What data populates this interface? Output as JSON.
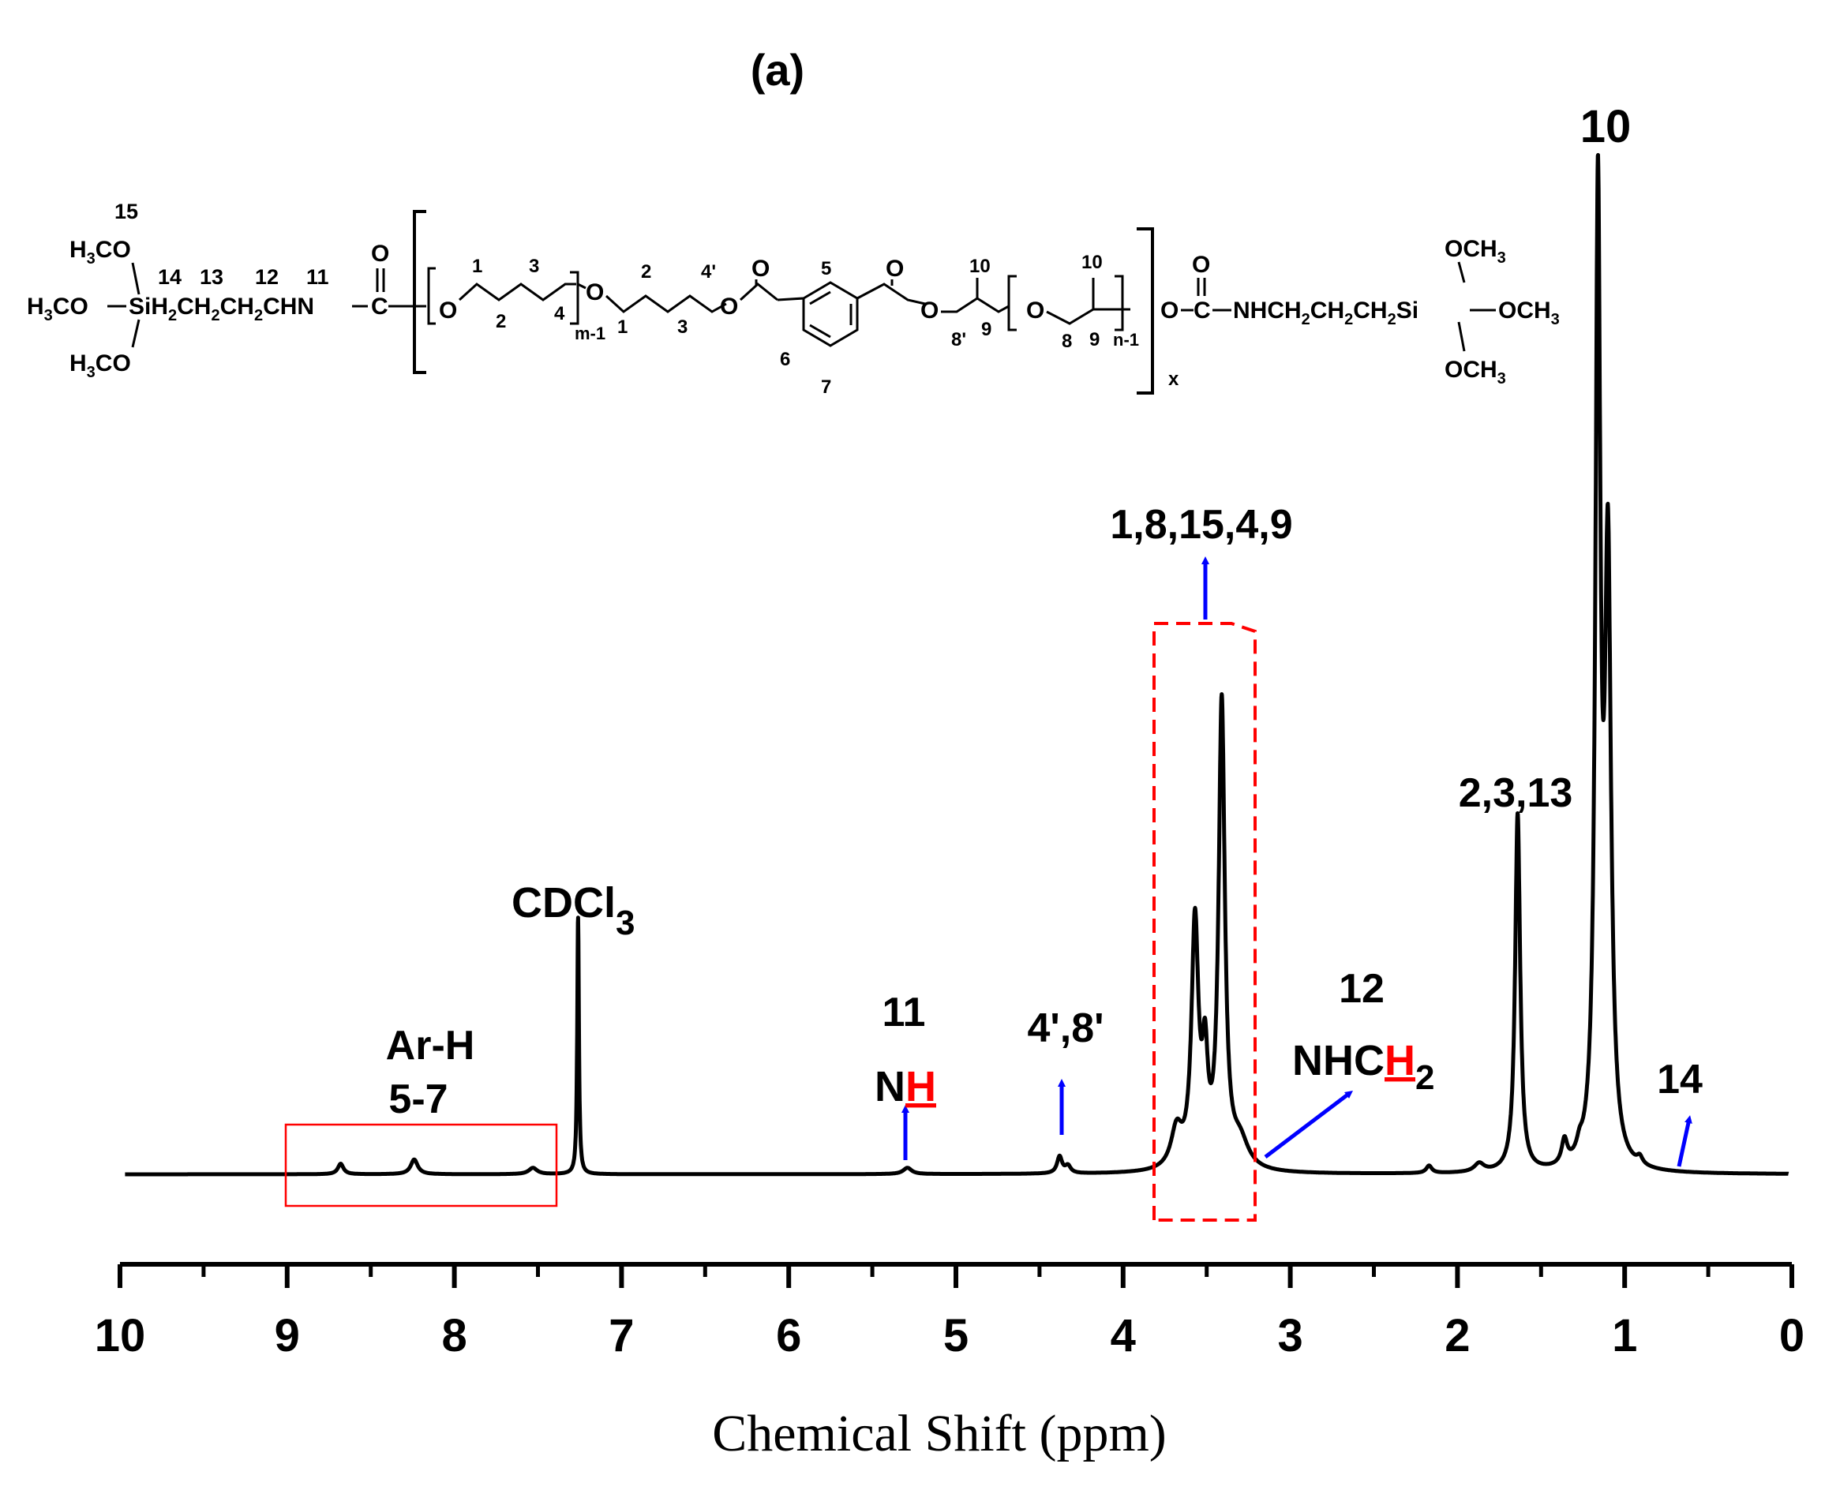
{
  "chart_data": {
    "type": "line",
    "panel_label": "(a)",
    "xlabel": "Chemical Shift (ppm)",
    "xlim": [
      10,
      0
    ],
    "x_reversed": true,
    "ylim": [
      0,
      100
    ],
    "grid": false,
    "x_ticks": [
      "10",
      "9",
      "8",
      "7",
      "6",
      "5",
      "4",
      "3",
      "2",
      "1",
      "0"
    ],
    "baseline": 0,
    "peaks": [
      {
        "ppm": 8.68,
        "height": 1.0,
        "width": 0.02
      },
      {
        "ppm": 8.24,
        "height": 1.4,
        "width": 0.025
      },
      {
        "ppm": 7.53,
        "height": 0.6,
        "width": 0.03
      },
      {
        "ppm": 7.26,
        "height": 24.5,
        "width": 0.006
      },
      {
        "ppm": 5.29,
        "height": 0.6,
        "width": 0.03
      },
      {
        "ppm": 4.38,
        "height": 1.6,
        "width": 0.018
      },
      {
        "ppm": 4.33,
        "height": 0.7,
        "width": 0.02
      },
      {
        "ppm": 3.68,
        "height": 3.6,
        "width": 0.04
      },
      {
        "ppm": 3.57,
        "height": 23.0,
        "width": 0.025
      },
      {
        "ppm": 3.51,
        "height": 9.0,
        "width": 0.02
      },
      {
        "ppm": 3.41,
        "height": 44.0,
        "width": 0.022
      },
      {
        "ppm": 3.3,
        "height": 2.5,
        "width": 0.06
      },
      {
        "ppm": 2.17,
        "height": 0.7,
        "width": 0.02
      },
      {
        "ppm": 1.87,
        "height": 0.8,
        "width": 0.035
      },
      {
        "ppm": 1.64,
        "height": 34.0,
        "width": 0.018
      },
      {
        "ppm": 1.36,
        "height": 2.3,
        "width": 0.02
      },
      {
        "ppm": 1.27,
        "height": 1.0,
        "width": 0.02
      },
      {
        "ppm": 1.16,
        "height": 90.0,
        "width": 0.018
      },
      {
        "ppm": 1.1,
        "height": 56.0,
        "width": 0.022
      },
      {
        "ppm": 0.91,
        "height": 0.7,
        "width": 0.02
      }
    ],
    "annotations": [
      {
        "text": "10",
        "ppm": 1.13
      },
      {
        "text": "2,3,13",
        "ppm": 1.63
      },
      {
        "text": "1,8,15,4,9",
        "ppm": 3.52
      },
      {
        "text": "12",
        "ppm": 2.8
      },
      {
        "text": "11",
        "ppm": 5.3
      },
      {
        "text": "4',8'",
        "ppm": 4.38
      },
      {
        "text": "Ar-H",
        "ppm": 8.1
      },
      {
        "text": "5-7",
        "ppm": 8.1
      },
      {
        "text": "14",
        "ppm": 0.7
      }
    ],
    "labels": {
      "cdcl3": "CDCl",
      "cdcl3_sub": "3",
      "nh_n": "N",
      "nh_h": "H",
      "nhch2_prefix": "NHC",
      "nhch2_h": "H",
      "nhch2_sub": "2"
    }
  },
  "structure": {
    "left": {
      "h15": "15",
      "h3co_top": "H",
      "h3co_top_sub": "3",
      "h3co_top_end": "CO",
      "h3co_mid": "H",
      "h3co_mid_sub": "3",
      "h3co_mid_end": "CO",
      "si_chain": "SiH",
      "si_chain_sub1": "2",
      "si_chain_mid1": "CH",
      "si_chain_sub2": "2",
      "si_chain_mid2": "CH",
      "si_chain_sub3": "2",
      "si_chain_end": "CHN",
      "h3co_bot": "H",
      "h3co_bot_sub": "3",
      "h3co_bot_end": "CO",
      "n14": "14",
      "n13": "13",
      "n12": "12",
      "n11": "11",
      "carbonyl_o": "O",
      "carbonyl_c": "C"
    },
    "backbone": {
      "o1": "O",
      "n1": "1",
      "n2": "2",
      "n3": "3",
      "n4": "4",
      "m1": "m-1",
      "o2": "O",
      "n1b": "1",
      "n2b": "2",
      "n3b": "3",
      "n4p": "4'",
      "o3": "O",
      "o_keto1": "O",
      "n5": "5",
      "n6": "6",
      "n7": "7",
      "o_keto2": "O",
      "o4": "O",
      "n8p": "8'",
      "n9": "9",
      "n10": "10",
      "o5": "O",
      "n8": "8",
      "n9b": "9",
      "n10b": "10",
      "nm1": "n-1",
      "x": "x"
    },
    "right": {
      "o_end": "O",
      "c_end": "C",
      "o_carbonyl": "O",
      "chain": "NHCH",
      "chain_sub1": "2",
      "chain_mid": "CH",
      "chain_sub2": "2",
      "chain_mid2": "CH",
      "chain_sub3": "2",
      "chain_end": "Si",
      "och3_top": "OCH",
      "och3_top_sub": "3",
      "och3_mid": "OCH",
      "och3_mid_sub": "3",
      "och3_bot": "OCH",
      "och3_bot_sub": "3"
    }
  },
  "colors": {
    "spectrum": "#000000",
    "arrow": "#0000ff",
    "box": "#ff0000",
    "highlight": "#ff0000"
  }
}
